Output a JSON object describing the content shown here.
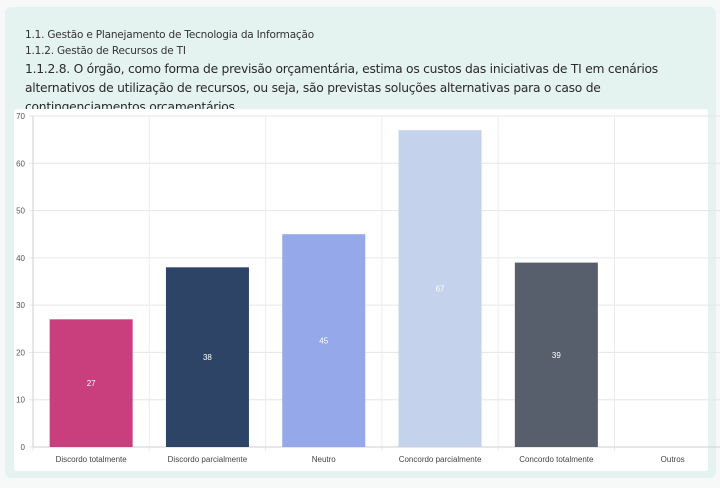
{
  "breadcrumb": {
    "level1": "1.1. Gestão e Planejamento de Tecnologia da Informação",
    "level2": "1.1.2. Gestão de Recursos de TI"
  },
  "question": "1.1.2.8. O órgão, como forma de previsão orçamentária, estima os custos das iniciativas de TI em cenários alternativos de utilização de recursos, ou seja, são previstas soluções alternativas para o caso de contingenciamentos orçamentários.",
  "chart_data": {
    "type": "bar",
    "title": "",
    "xlabel": "",
    "ylabel": "",
    "ylim": [
      0,
      70
    ],
    "yticks": [
      0,
      10,
      20,
      30,
      40,
      50,
      60,
      70
    ],
    "grid": true,
    "categories": [
      "Discordo totalmente",
      "Discordo parcialmente",
      "Neutro",
      "Concordo parcialmente",
      "Concordo totalmente",
      "Outros"
    ],
    "values": [
      27,
      38,
      45,
      67,
      39,
      0
    ],
    "colors": [
      "#c93f7e",
      "#2e4466",
      "#94a8ea",
      "#c4d2ec",
      "#575e6c",
      "#cccccc"
    ]
  }
}
